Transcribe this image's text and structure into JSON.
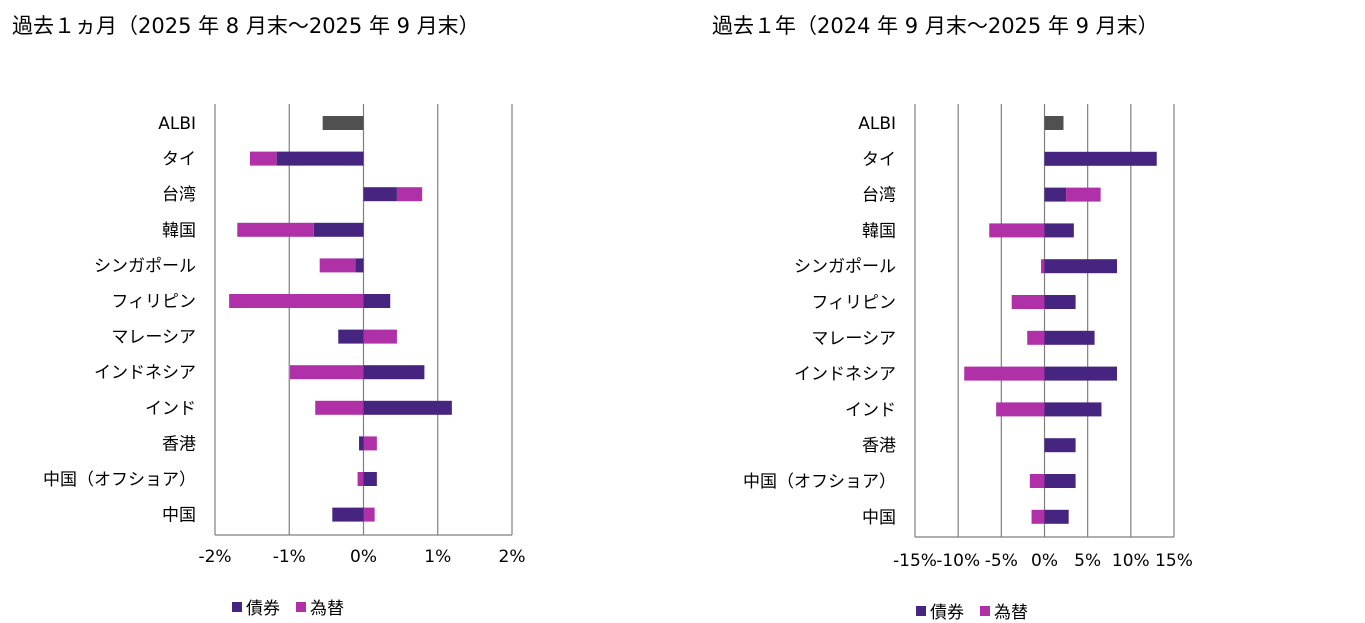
{
  "colors": {
    "bond": "#452580",
    "fx": "#B030A8",
    "albi": "#505050",
    "grid": "#7f7f7f"
  },
  "chart_data": [
    {
      "type": "bar",
      "orientation": "horizontal",
      "stacked": true,
      "title": "過去１ヵ月（2025 年 8 月末～2025 年 9 月末）",
      "categories": [
        "ALBI",
        "タイ",
        "台湾",
        "韓国",
        "シンガポール",
        "フィリピン",
        "マレーシア",
        "インドネシア",
        "インド",
        "香港",
        "中国（オフショア）",
        "中国"
      ],
      "xlim": [
        -2,
        2
      ],
      "xticks": [
        -2,
        -1,
        0,
        1,
        2
      ],
      "xtick_labels": [
        "-2%",
        "-1%",
        "0%",
        "1%",
        "2%"
      ],
      "series": [
        {
          "name": "債券",
          "values": [
            -0.55,
            -1.17,
            0.45,
            -0.67,
            -0.11,
            0.36,
            -0.34,
            0.82,
            1.19,
            -0.06,
            0.18,
            -0.42
          ]
        },
        {
          "name": "為替",
          "values": [
            0,
            -0.36,
            0.34,
            -1.03,
            -0.48,
            -1.81,
            0.45,
            -0.99,
            -0.65,
            0.18,
            -0.08,
            0.15
          ]
        }
      ],
      "albi_color_distinct": true,
      "legend": [
        "債券",
        "為替"
      ],
      "legend_position": "bottom"
    },
    {
      "type": "bar",
      "orientation": "horizontal",
      "stacked": true,
      "title": "過去１年（2024 年 9 月末～2025 年 9 月末）",
      "categories": [
        "ALBI",
        "タイ",
        "台湾",
        "韓国",
        "シンガポール",
        "フィリピン",
        "マレーシア",
        "インドネシア",
        "インド",
        "香港",
        "中国（オフショア）",
        "中国"
      ],
      "xlim": [
        -15,
        15
      ],
      "xticks": [
        -15,
        -10,
        -5,
        0,
        5,
        10,
        15
      ],
      "xtick_labels": [
        "-15%",
        "-10%",
        "-5%",
        "0%",
        "5%",
        "10%",
        "15%"
      ],
      "series": [
        {
          "name": "債券",
          "values": [
            2.2,
            13.0,
            2.5,
            3.4,
            8.4,
            3.6,
            5.8,
            8.4,
            6.6,
            3.6,
            3.6,
            2.8
          ]
        },
        {
          "name": "為替",
          "values": [
            0,
            0,
            4.0,
            -6.4,
            -0.4,
            -3.8,
            -2.0,
            -9.3,
            -5.6,
            0,
            -1.7,
            -1.5
          ]
        }
      ],
      "albi_color_distinct": true,
      "legend": [
        "債券",
        "為替"
      ],
      "legend_position": "bottom"
    }
  ]
}
